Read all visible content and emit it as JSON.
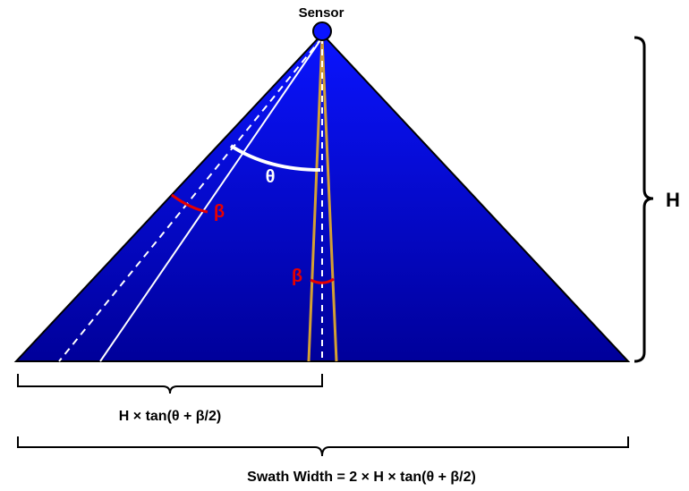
{
  "labels": {
    "sensor": "Sensor",
    "height": "H",
    "theta": "θ",
    "beta_left": "β",
    "beta_center": "β",
    "half_swath": "H × tan(θ + β/2)",
    "swath_width": "Swath Width = 2 × H × tan(θ + β/2)"
  },
  "colors": {
    "triangle_top": "#0a14ff",
    "triangle_bottom": "#00009a",
    "triangle_outline": "#000000",
    "sensor_fill": "#0a14ff",
    "beam_edge": "#d4a033",
    "angle_theta": "#ffffff",
    "angle_beta": "#e60000",
    "text_white": "#ffffff",
    "text_red": "#e60000",
    "text_black": "#000000"
  }
}
